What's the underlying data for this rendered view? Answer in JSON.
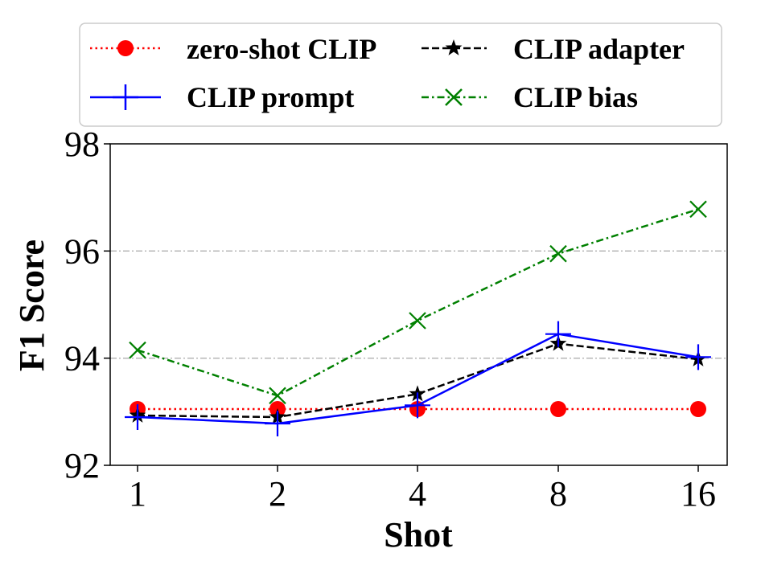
{
  "chart_data": {
    "type": "line",
    "title": "",
    "xlabel": "Shot",
    "ylabel": "F1 Score",
    "categories": [
      "1",
      "2",
      "4",
      "8",
      "16"
    ],
    "ylim": [
      92,
      98
    ],
    "yticks": [
      92,
      94,
      96,
      98
    ],
    "grid": "horizontal dash-dot at y ticks",
    "legend_position": "top",
    "series": [
      {
        "name": "zero-shot CLIP",
        "color": "#ff0000",
        "marker": "circle",
        "line": "dotted",
        "values": [
          93.05,
          93.05,
          93.05,
          93.05,
          93.05
        ]
      },
      {
        "name": "CLIP adapter",
        "color": "#000000",
        "marker": "star",
        "line": "dashed",
        "values": [
          92.93,
          92.9,
          93.33,
          94.27,
          93.98
        ]
      },
      {
        "name": "CLIP prompt",
        "color": "#0000ff",
        "marker": "plus",
        "line": "solid",
        "values": [
          92.9,
          92.78,
          93.12,
          94.45,
          94.02
        ]
      },
      {
        "name": "CLIP bias",
        "color": "#008000",
        "marker": "x",
        "line": "dashdot",
        "values": [
          94.15,
          93.3,
          94.7,
          95.95,
          96.78
        ]
      }
    ]
  }
}
